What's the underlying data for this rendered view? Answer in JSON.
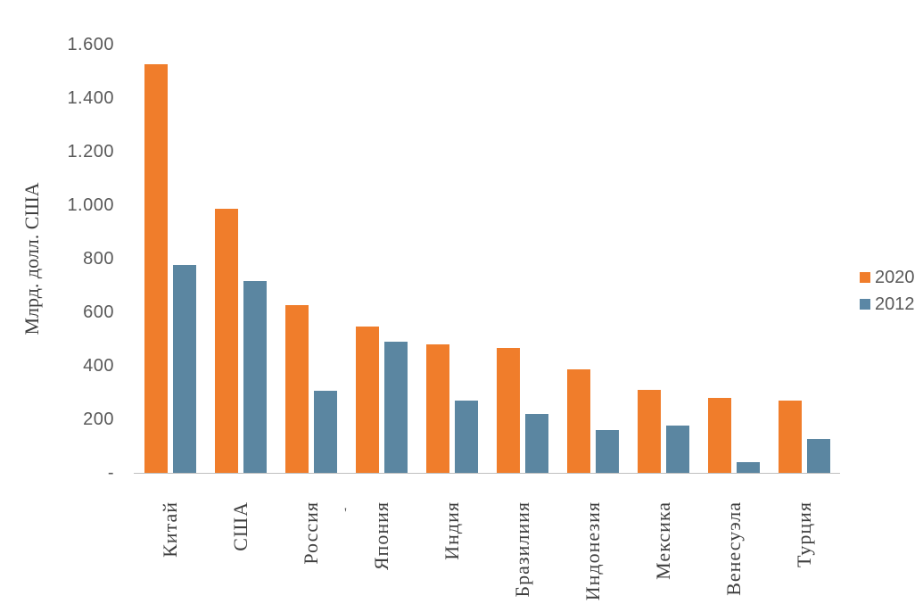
{
  "chart_data": {
    "type": "bar",
    "title": "",
    "ylabel": "Млрд. долл. США",
    "xlabel": "",
    "categories": [
      "Китай",
      "США",
      "Россия",
      "Япония",
      "Индия",
      "Бразилиия",
      "Индонезия",
      "Мексика",
      "Венесуэла",
      "Турция"
    ],
    "series": [
      {
        "name": "2020",
        "color": "#F07D2B",
        "values": [
          1525,
          985,
          625,
          545,
          480,
          465,
          385,
          310,
          280,
          270
        ]
      },
      {
        "name": "2012",
        "color": "#5B86A1",
        "values": [
          775,
          715,
          305,
          490,
          270,
          220,
          160,
          175,
          40,
          125
        ]
      }
    ],
    "ylim": [
      0,
      1600
    ],
    "ytick_step": 200,
    "ytick_labels": [
      "-",
      "200",
      "400",
      "600",
      "800",
      "1.000",
      "1.200",
      "1.400",
      "1.600"
    ],
    "grid": false,
    "legend_position": "right",
    "legend_swatch_colors": {
      "2020": "#F07D2B",
      "2012": "#5B87A5"
    }
  },
  "axis": {
    "y_title": "Млрд. долл. США",
    "zero_label": "-",
    "line_color": "#BFBFBF"
  },
  "legend": {
    "items": [
      {
        "label": "2020",
        "color": "#F07D2B"
      },
      {
        "label": "2012",
        "color": "#5B87A5"
      }
    ]
  },
  "misc": {
    "stray_mark": "'"
  }
}
